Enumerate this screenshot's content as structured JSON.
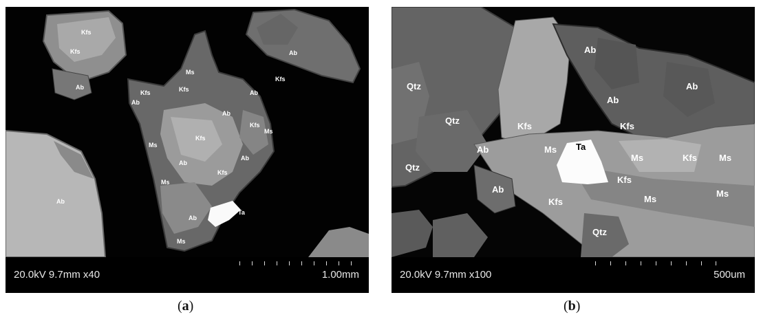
{
  "panels": {
    "a": {
      "info": "20.0kV 9.7mm x40",
      "scale": "1.00mm",
      "caption_open": "(",
      "caption_letter": "a",
      "caption_close": ")",
      "labels": [
        "Kfs",
        "Kfs",
        "Ab",
        "Ab",
        "Ms",
        "Kfs",
        "Kfs",
        "Ab",
        "Ab",
        "Kfs",
        "Ab",
        "Kfs",
        "Ms",
        "Ms",
        "Kfs",
        "Ab",
        "Ab",
        "Ms",
        "Kfs",
        "Ab",
        "Ta",
        "Ms",
        "Ab"
      ]
    },
    "b": {
      "info": "20.0kV 9.7mm x100",
      "scale": "500um",
      "caption_open": "(",
      "caption_letter": "b",
      "caption_close": ")",
      "labels": [
        "Ab",
        "Qtz",
        "Ab",
        "Qtz",
        "Ab",
        "Kfs",
        "Kfs",
        "Ab",
        "Ms",
        "Ta",
        "Qtz",
        "Ms",
        "Kfs",
        "Ms",
        "Ab",
        "Kfs",
        "Ms",
        "Kfs",
        "Ms",
        "Qtz"
      ]
    }
  },
  "colors": {
    "background": "#000000",
    "albite": "#6e6e6e",
    "kfeldspar": "#9a9a9a",
    "muscovite": "#b5b5b5",
    "tantalite": "#ffffff"
  }
}
